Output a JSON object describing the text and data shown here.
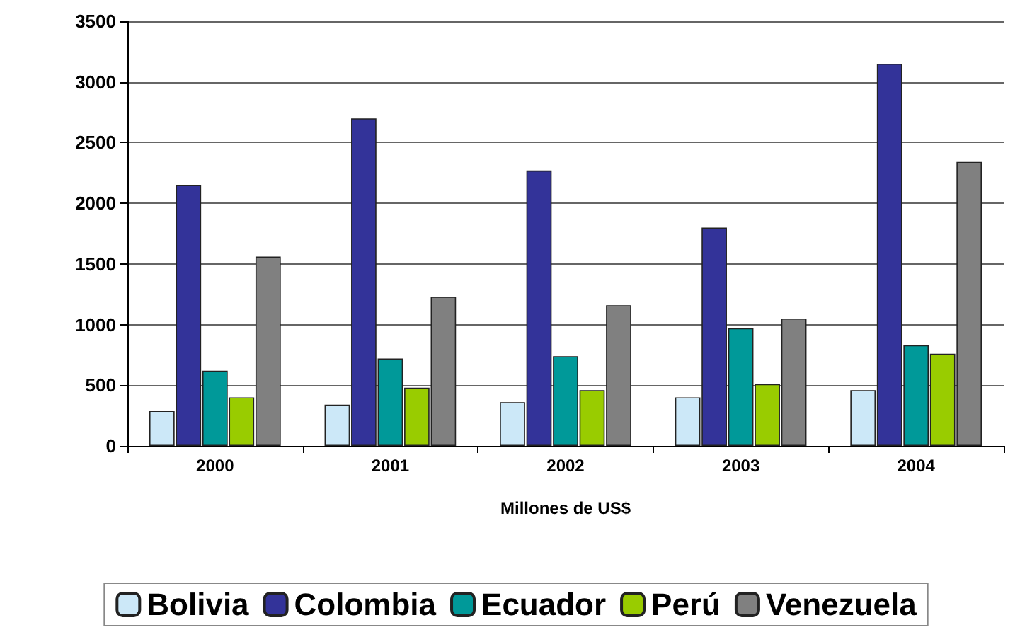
{
  "chart_data": {
    "type": "bar",
    "xlabel": "Millones de US$",
    "categories": [
      "2000",
      "2001",
      "2002",
      "2003",
      "2004"
    ],
    "series": [
      {
        "name": "Bolivia",
        "color": "#cce8f8",
        "values": [
          290,
          340,
          360,
          400,
          460
        ]
      },
      {
        "name": "Colombia",
        "color": "#333399",
        "values": [
          2150,
          2700,
          2270,
          1800,
          3150
        ]
      },
      {
        "name": "Ecuador",
        "color": "#009999",
        "values": [
          620,
          720,
          740,
          970,
          830
        ]
      },
      {
        "name": "Perú",
        "color": "#99cc00",
        "values": [
          400,
          480,
          460,
          510,
          760
        ]
      },
      {
        "name": "Venezuela",
        "color": "#808080",
        "values": [
          1560,
          1230,
          1160,
          1050,
          2340
        ]
      }
    ],
    "ylim": [
      0,
      3500
    ],
    "yticks": [
      0,
      500,
      1000,
      1500,
      2000,
      2500,
      3000,
      3500
    ],
    "grid": "y",
    "legend": "bottom"
  }
}
